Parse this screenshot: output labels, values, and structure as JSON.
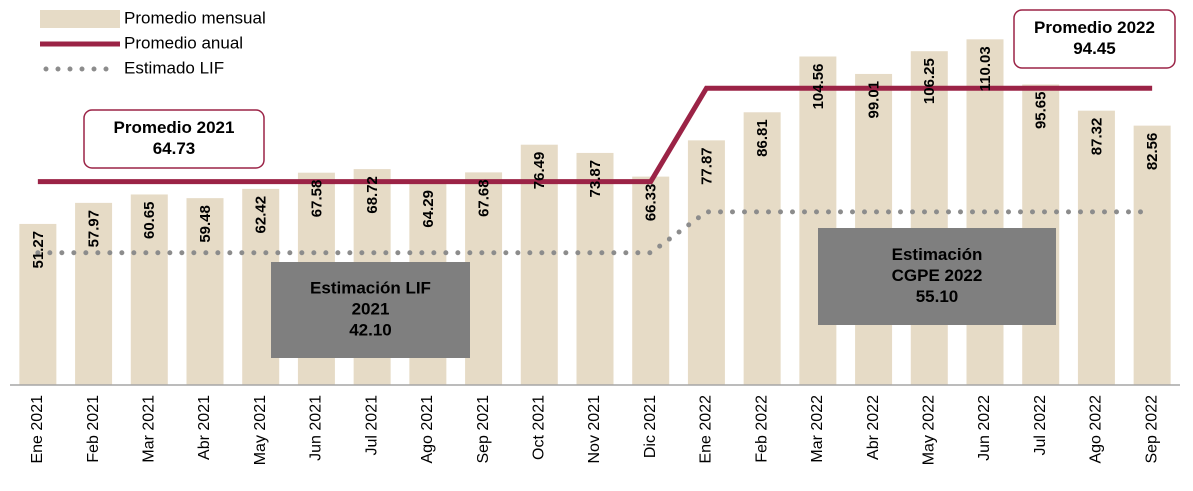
{
  "chart_data": {
    "type": "bar",
    "categories": [
      "Ene 2021",
      "Feb 2021",
      "Mar 2021",
      "Abr 2021",
      "May 2021",
      "Jun 2021",
      "Jul 2021",
      "Ago 2021",
      "Sep 2021",
      "Oct 2021",
      "Nov 2021",
      "Dic 2021",
      "Ene 2022",
      "Feb 2022",
      "Mar 2022",
      "Abr 2022",
      "May 2022",
      "Jun 2022",
      "Jul 2022",
      "Ago 2022",
      "Sep 2022"
    ],
    "series": [
      {
        "name": "Promedio mensual",
        "type": "bar",
        "color": "#e6dbc6",
        "values": [
          51.27,
          57.97,
          60.65,
          59.48,
          62.42,
          67.58,
          68.72,
          64.29,
          67.68,
          76.49,
          73.87,
          66.33,
          77.87,
          86.81,
          104.56,
          99.01,
          106.25,
          110.03,
          95.65,
          87.32,
          82.56
        ]
      },
      {
        "name": "Promedio anual",
        "type": "line",
        "style": "solid",
        "color": "#9b2346",
        "values": [
          64.73,
          64.73,
          64.73,
          64.73,
          64.73,
          64.73,
          64.73,
          64.73,
          64.73,
          64.73,
          64.73,
          64.73,
          94.45,
          94.45,
          94.45,
          94.45,
          94.45,
          94.45,
          94.45,
          94.45,
          94.45
        ]
      },
      {
        "name": "Estimado LIF",
        "type": "line",
        "style": "dotted",
        "color": "#8c8c8c",
        "values": [
          42.1,
          42.1,
          42.1,
          42.1,
          42.1,
          42.1,
          42.1,
          42.1,
          42.1,
          42.1,
          42.1,
          42.1,
          55.1,
          55.1,
          55.1,
          55.1,
          55.1,
          55.1,
          55.1,
          55.1,
          55.1
        ]
      }
    ],
    "annotations": [
      {
        "lines": [
          "Promedio 2021"
        ],
        "value": 64.73
      },
      {
        "lines": [
          "Promedio 2022"
        ],
        "value": 94.45
      },
      {
        "lines": [
          "Estimación LIF",
          "2021"
        ],
        "value": 42.1,
        "value_label": "42.10"
      },
      {
        "lines": [
          "Estimación",
          "CGPE 2022"
        ],
        "value": 55.1,
        "value_label": "55.10"
      }
    ],
    "ylim": [
      0,
      120
    ],
    "legend": "upper left"
  }
}
